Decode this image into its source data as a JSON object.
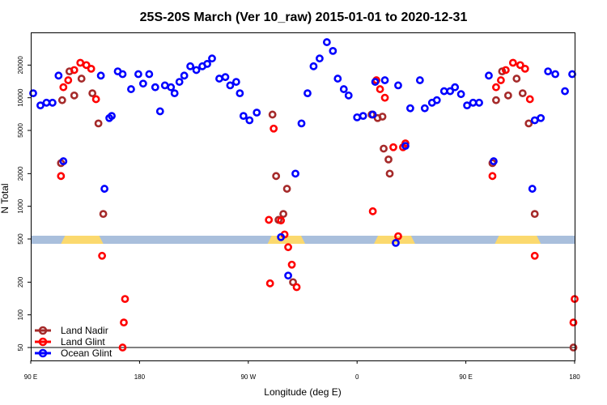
{
  "chart_data": {
    "type": "scatter",
    "title": "25S-20S March (Ver 10_raw)   2015-01-01 to 2020-12-31",
    "xlabel": "Longitude (deg E)",
    "ylabel": "N Total",
    "x_scale": "longitude wrapped from 90 E eastward through 180 to 180 (450 = 90 E)",
    "y_scale": "log",
    "xlim": [
      90,
      540
    ],
    "ylim": [
      38,
      40000
    ],
    "x_ticks": [
      {
        "value": 90,
        "label": "90 E"
      },
      {
        "value": 180,
        "label": "180"
      },
      {
        "value": 270,
        "label": "90 W"
      },
      {
        "value": 360,
        "label": "0"
      },
      {
        "value": 450,
        "label": "90 E"
      },
      {
        "value": 540,
        "label": "180"
      }
    ],
    "y_ticks": [
      50,
      100,
      200,
      500,
      1000,
      2000,
      5000,
      10000,
      20000
    ],
    "reference_line": 50,
    "legend": {
      "placement": "bottom-left",
      "entries": [
        {
          "label": "Land Nadir",
          "color": "#a52a2a"
        },
        {
          "label": "Land Glint",
          "color": "#ff0000"
        },
        {
          "label": "Ocean Glint",
          "color": "#0000ff"
        }
      ]
    },
    "surface_band": {
      "ocean_color": "#a9bfdc",
      "land_color": "#fbd96e",
      "land_segments": [
        [
          115,
          150
        ],
        [
          286,
          317
        ],
        [
          374,
          408
        ],
        [
          474,
          512
        ]
      ]
    },
    "series": [
      {
        "name": "Land Nadir",
        "color": "#a52a2a",
        "points": [
          [
            115,
            2500
          ],
          [
            116,
            9500
          ],
          [
            122,
            17500
          ],
          [
            126,
            10500
          ],
          [
            132,
            15000
          ],
          [
            141,
            11000
          ],
          [
            146,
            5800
          ],
          [
            150,
            850
          ],
          [
            290,
            7000
          ],
          [
            293,
            1900
          ],
          [
            295,
            750
          ],
          [
            299,
            850
          ],
          [
            302,
            1450
          ],
          [
            307,
            200
          ],
          [
            372,
            7000
          ],
          [
            377,
            6500
          ],
          [
            381,
            6700
          ],
          [
            382,
            3400
          ],
          [
            386,
            2700
          ],
          [
            387,
            2000
          ],
          [
            472,
            2500
          ],
          [
            475,
            9500
          ],
          [
            480,
            17500
          ],
          [
            485,
            10500
          ],
          [
            492,
            15000
          ],
          [
            497,
            11000
          ],
          [
            502,
            5800
          ],
          [
            507,
            850
          ],
          [
            539,
            50
          ]
        ]
      },
      {
        "name": "Land Glint",
        "color": "#ff0000",
        "points": [
          [
            115,
            1900
          ],
          [
            117,
            12500
          ],
          [
            121,
            14500
          ],
          [
            126,
            18000
          ],
          [
            131,
            21000
          ],
          [
            136,
            20000
          ],
          [
            140,
            18500
          ],
          [
            144,
            9700
          ],
          [
            149,
            350
          ],
          [
            166,
            50
          ],
          [
            167,
            85
          ],
          [
            168,
            140
          ],
          [
            287,
            750
          ],
          [
            291,
            5200
          ],
          [
            297,
            740
          ],
          [
            300,
            550
          ],
          [
            303,
            420
          ],
          [
            306,
            290
          ],
          [
            310,
            180
          ],
          [
            288,
            195
          ],
          [
            373,
            900
          ],
          [
            376,
            14500
          ],
          [
            379,
            12000
          ],
          [
            383,
            10000
          ],
          [
            390,
            3500
          ],
          [
            394,
            530
          ],
          [
            398,
            3500
          ],
          [
            400,
            3800
          ],
          [
            472,
            1900
          ],
          [
            475,
            12500
          ],
          [
            479,
            14500
          ],
          [
            483,
            18000
          ],
          [
            489,
            21000
          ],
          [
            495,
            20000
          ],
          [
            499,
            18500
          ],
          [
            503,
            9700
          ],
          [
            507,
            350
          ],
          [
            539,
            85
          ],
          [
            540,
            140
          ]
        ]
      },
      {
        "name": "Ocean Glint",
        "color": "#0000ff",
        "points": [
          [
            92,
            11000
          ],
          [
            98,
            8500
          ],
          [
            103,
            9000
          ],
          [
            108,
            9000
          ],
          [
            113,
            16000
          ],
          [
            117,
            2600
          ],
          [
            148,
            16000
          ],
          [
            151,
            1450
          ],
          [
            155,
            6500
          ],
          [
            157,
            6800
          ],
          [
            162,
            17500
          ],
          [
            166,
            16500
          ],
          [
            173,
            12000
          ],
          [
            179,
            16500
          ],
          [
            183,
            13500
          ],
          [
            188,
            16500
          ],
          [
            193,
            12500
          ],
          [
            197,
            7500
          ],
          [
            201,
            13000
          ],
          [
            206,
            12500
          ],
          [
            209,
            11000
          ],
          [
            213,
            14000
          ],
          [
            217,
            16000
          ],
          [
            222,
            19500
          ],
          [
            227,
            18000
          ],
          [
            232,
            19500
          ],
          [
            236,
            20500
          ],
          [
            240,
            23000
          ],
          [
            246,
            15000
          ],
          [
            251,
            15500
          ],
          [
            255,
            13000
          ],
          [
            260,
            14000
          ],
          [
            263,
            11000
          ],
          [
            266,
            6800
          ],
          [
            271,
            6200
          ],
          [
            277,
            7300
          ],
          [
            297,
            520
          ],
          [
            303,
            230
          ],
          [
            309,
            2000
          ],
          [
            314,
            5800
          ],
          [
            319,
            11000
          ],
          [
            324,
            19500
          ],
          [
            329,
            23000
          ],
          [
            335,
            32500
          ],
          [
            340,
            27000
          ],
          [
            344,
            15000
          ],
          [
            349,
            12000
          ],
          [
            353,
            10500
          ],
          [
            360,
            6600
          ],
          [
            365,
            6800
          ],
          [
            373,
            7000
          ],
          [
            375,
            14000
          ],
          [
            383,
            14500
          ],
          [
            392,
            460
          ],
          [
            394,
            13000
          ],
          [
            400,
            3600
          ],
          [
            404,
            8000
          ],
          [
            412,
            14500
          ],
          [
            416,
            8000
          ],
          [
            422,
            9000
          ],
          [
            426,
            9500
          ],
          [
            432,
            11500
          ],
          [
            437,
            11500
          ],
          [
            441,
            12500
          ],
          [
            446,
            10800
          ],
          [
            451,
            8500
          ],
          [
            456,
            9000
          ],
          [
            461,
            9000
          ],
          [
            469,
            16000
          ],
          [
            473,
            2600
          ],
          [
            505,
            1450
          ],
          [
            507,
            6200
          ],
          [
            512,
            6500
          ],
          [
            518,
            17500
          ],
          [
            524,
            16500
          ],
          [
            532,
            11500
          ],
          [
            538,
            16500
          ]
        ]
      }
    ]
  }
}
